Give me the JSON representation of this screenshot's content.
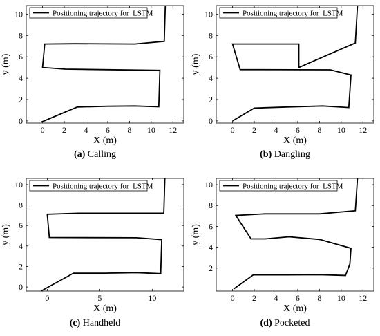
{
  "charts": [
    {
      "caption_letter": "(a)",
      "caption_text": "Calling",
      "chart_data": {
        "type": "line",
        "xlabel": "X (m)",
        "ylabel": "y (m)",
        "xlim": [
          -1.5,
          13
        ],
        "ylim": [
          -0.2,
          10.8
        ],
        "xticks": [
          0,
          2,
          4,
          6,
          8,
          10,
          12
        ],
        "yticks": [
          0,
          2,
          4,
          6,
          8,
          10
        ],
        "legend": "top-left",
        "series": [
          {
            "name": "Positioning trajectory for  LSTM",
            "x": [
              -0.1,
              3.2,
              6.0,
              8.5,
              10.7,
              10.8,
              2.1,
              0.0,
              0.2,
              3.0,
              8.5,
              11.2,
              11.3
            ],
            "y": [
              -0.1,
              1.3,
              1.37,
              1.4,
              1.32,
              4.73,
              4.85,
              5.0,
              7.2,
              7.23,
              7.2,
              7.45,
              10.8
            ]
          }
        ]
      }
    },
    {
      "caption_letter": "(b)",
      "caption_text": "Dangling",
      "chart_data": {
        "type": "line",
        "xlabel": "X (m)",
        "ylabel": "y (m)",
        "xlim": [
          -1.5,
          13
        ],
        "ylim": [
          -0.2,
          10.8
        ],
        "xticks": [
          0,
          2,
          4,
          6,
          8,
          10,
          12
        ],
        "yticks": [
          0,
          2,
          4,
          6,
          8,
          10
        ],
        "legend": "top-left",
        "series": [
          {
            "name": "Positioning trajectory for  LSTM",
            "x": [
              0.0,
              2.0,
              5.0,
              8.3,
              10.7,
              10.9,
              9.0,
              0.7,
              0.0,
              6.1,
              6.1,
              11.3,
              11.5
            ],
            "y": [
              0.0,
              1.2,
              1.3,
              1.4,
              1.25,
              4.3,
              4.78,
              4.8,
              7.2,
              7.2,
              5.0,
              7.3,
              10.8
            ]
          }
        ]
      }
    },
    {
      "caption_letter": "(c)",
      "caption_text": "Handheld",
      "chart_data": {
        "type": "line",
        "xlabel": "X (m)",
        "ylabel": "y (m)",
        "xlim": [
          -2,
          13
        ],
        "ylim": [
          -0.4,
          10.6
        ],
        "xticks": [
          0,
          5,
          10
        ],
        "yticks": [
          0,
          2,
          4,
          6,
          8,
          10
        ],
        "legend": "top-left",
        "series": [
          {
            "name": "Positioning trajectory for  LSTM",
            "x": [
              -0.6,
              2.5,
              5.5,
              8.5,
              10.8,
              10.9,
              8.5,
              0.2,
              0.0,
              3.0,
              8.0,
              11.1,
              11.2
            ],
            "y": [
              -0.4,
              1.35,
              1.35,
              1.4,
              1.3,
              4.62,
              4.8,
              4.83,
              7.1,
              7.2,
              7.2,
              7.2,
              10.6
            ]
          }
        ]
      }
    },
    {
      "caption_letter": "(d)",
      "caption_text": "Pocketed",
      "chart_data": {
        "type": "line",
        "xlabel": "X (m)",
        "ylabel": "y (m)",
        "xlim": [
          -1.5,
          13
        ],
        "ylim": [
          -0.2,
          10.6
        ],
        "xticks": [
          0,
          2,
          4,
          6,
          8,
          10,
          12
        ],
        "yticks": [
          2,
          4,
          6,
          8,
          10
        ],
        "legend": "top-left",
        "series": [
          {
            "name": "Positioning trajectory for  LSTM",
            "x": [
              0.1,
              1.9,
              5.0,
              8.0,
              10.4,
              10.8,
              10.9,
              8.0,
              5.2,
              3.0,
              1.7,
              0.3,
              3.0,
              8.0,
              11.3,
              11.5
            ],
            "y": [
              0.0,
              1.35,
              1.35,
              1.37,
              1.3,
              2.4,
              3.9,
              4.75,
              5.0,
              4.8,
              4.8,
              7.05,
              7.2,
              7.2,
              7.5,
              10.6
            ]
          }
        ]
      }
    }
  ]
}
